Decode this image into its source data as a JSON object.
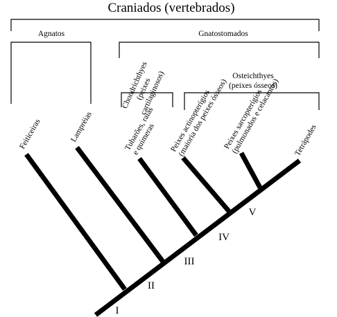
{
  "title": "Craniados (vertebrados)",
  "groups": {
    "agnatos": "Agnatos",
    "gnatostomados": "Gnatostomados",
    "chondrichthyes": [
      "Chondrichthyes",
      "(peixes",
      "cartilaginosos)"
    ],
    "osteichthyes": [
      "Osteichthyes",
      "(peixes ósseos)"
    ]
  },
  "taxa": {
    "feiticeiras": [
      "Feiticeiras"
    ],
    "lampreias": [
      "Lampréias"
    ],
    "tubaroes": [
      "Tubarões, raias",
      "e quimeras"
    ],
    "actinopterigios": [
      "Peixes actinopterígios",
      "(maioria dos peixes ósseos)"
    ],
    "sarcopterigios": [
      "Peixes sarcopterígios",
      "(pulmonados e celacantos)"
    ],
    "tetrapodes": [
      "Tetrápodes"
    ]
  },
  "nodes": [
    "I",
    "II",
    "III",
    "IV",
    "V"
  ]
}
